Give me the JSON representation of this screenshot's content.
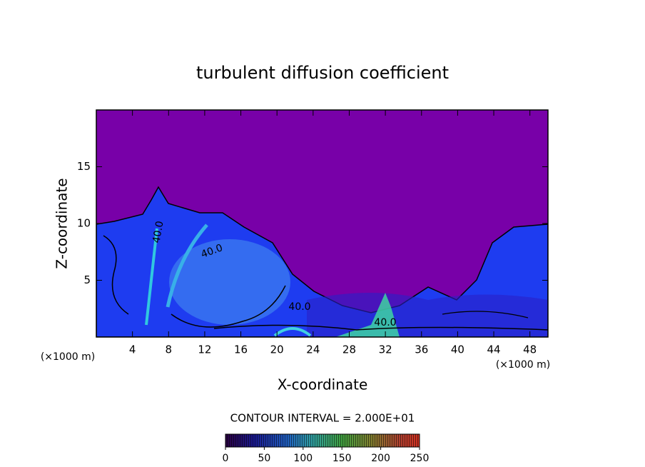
{
  "chart_data": {
    "type": "contour",
    "title": "turbulent diffusion coefficient",
    "xlabel": "X-coordinate",
    "ylabel": "Z-coordinate",
    "x_unit": "(×1000 m)",
    "xlim": [
      0,
      50
    ],
    "xticks": [
      4,
      8,
      12,
      16,
      20,
      24,
      28,
      32,
      36,
      40,
      44,
      48
    ],
    "ylim": [
      0,
      20
    ],
    "yticks": [
      5,
      10,
      15
    ],
    "contour_labels": [
      "40.0",
      "40.0",
      "40.0",
      "40.0"
    ],
    "contour_interval": "CONTOUR INTERVAL = 2.000E+01",
    "colorbar": {
      "lim": [
        0,
        250
      ],
      "ticks": [
        0,
        50,
        100,
        150,
        200,
        250
      ]
    }
  }
}
